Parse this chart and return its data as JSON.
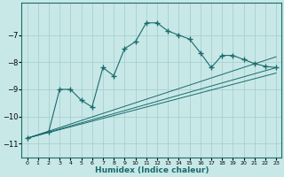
{
  "xlabel": "Humidex (Indice chaleur)",
  "bg_color": "#c8e8e8",
  "grid_color": "#a8d0d0",
  "line_color": "#1a6b6b",
  "xlim": [
    -0.5,
    23.5
  ],
  "ylim": [
    -11.5,
    -5.8
  ],
  "yticks": [
    -11,
    -10,
    -9,
    -8,
    -7
  ],
  "xticks": [
    0,
    1,
    2,
    3,
    4,
    5,
    6,
    7,
    8,
    9,
    10,
    11,
    12,
    13,
    14,
    15,
    16,
    17,
    18,
    19,
    20,
    21,
    22,
    23
  ],
  "main_x": [
    0,
    2,
    3,
    4,
    5,
    6,
    7,
    8,
    9,
    10,
    11,
    12,
    13,
    14,
    15,
    16,
    17,
    18,
    19,
    20,
    21,
    22,
    23
  ],
  "main_y": [
    -10.8,
    -10.55,
    -9.0,
    -9.0,
    -9.4,
    -9.65,
    -8.2,
    -8.5,
    -7.5,
    -7.25,
    -6.55,
    -6.55,
    -6.85,
    -7.0,
    -7.15,
    -7.65,
    -8.2,
    -7.75,
    -7.75,
    -7.9,
    -8.05,
    -8.15,
    -8.2
  ],
  "line1_x": [
    0,
    23
  ],
  "line1_y": [
    -10.8,
    -8.2
  ],
  "line2_x": [
    0,
    23
  ],
  "line2_y": [
    -10.8,
    -7.8
  ],
  "line3_x": [
    0,
    23
  ],
  "line3_y": [
    -10.8,
    -8.4
  ]
}
